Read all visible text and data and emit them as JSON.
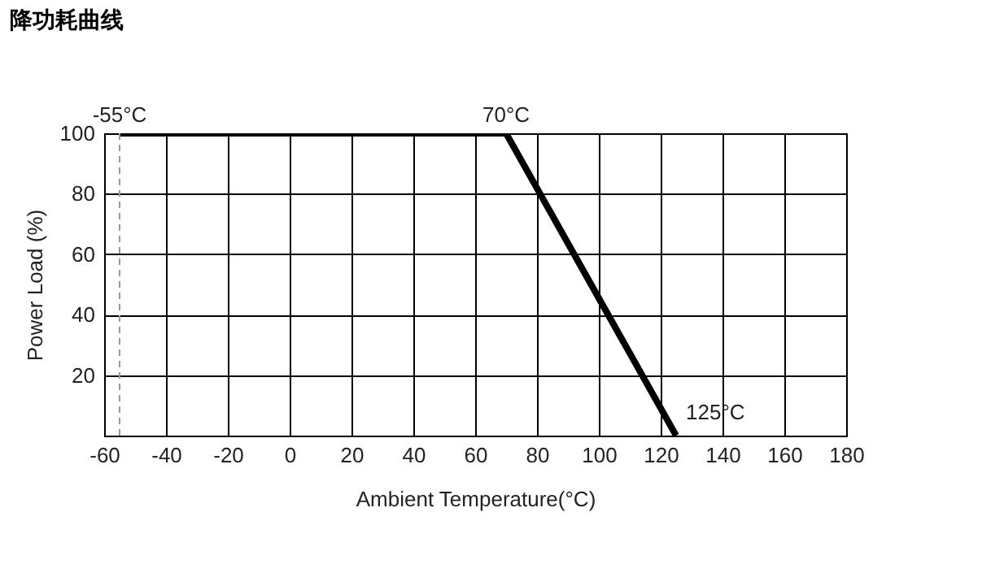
{
  "chart_data": {
    "type": "line",
    "title": "降功耗曲线",
    "xlabel": "Ambient Temperature(°C)",
    "ylabel": "Power Load (%)",
    "x": [
      -55,
      70,
      125
    ],
    "series": [
      {
        "color": "#000000",
        "values": [
          100,
          100,
          0
        ]
      }
    ],
    "xlim": [
      -60,
      180
    ],
    "xticks": [
      -60,
      -40,
      -20,
      0,
      20,
      40,
      60,
      80,
      100,
      120,
      140,
      160,
      180
    ],
    "ylim": [
      0,
      100
    ],
    "yticks": [
      20,
      40,
      60,
      80,
      100
    ],
    "grid": true,
    "marker": "none",
    "line_style": "solid",
    "ref_lines": [
      {
        "axis": "x",
        "value": -55,
        "color": "#999999",
        "line_style": "dashed"
      }
    ],
    "annotations": [
      {
        "text": "-55°C",
        "x": -55,
        "y": 100
      },
      {
        "text": "70°C",
        "x": 70,
        "y": 100
      },
      {
        "text": "125°C",
        "x": 125,
        "y": 0
      }
    ]
  }
}
